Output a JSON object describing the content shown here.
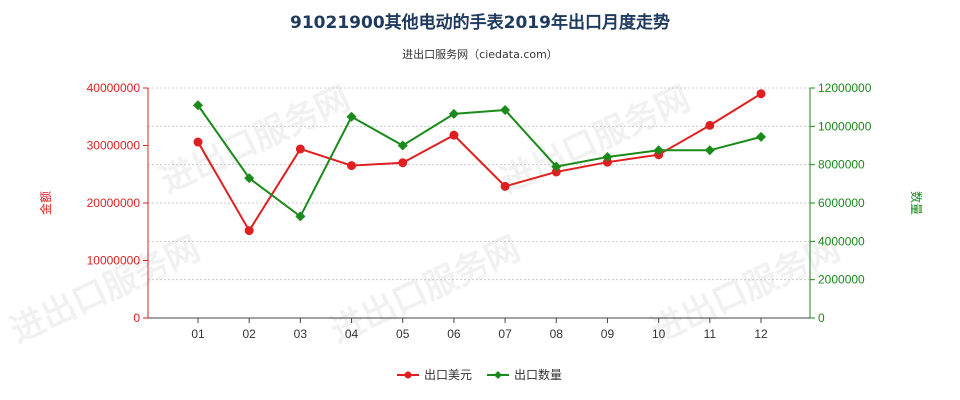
{
  "title": "91021900其他电动的手表2019年出口月度走势",
  "subtitle": "进出口服务网（ciedata.com）",
  "colors": {
    "left_axis": "#e02020",
    "right_axis": "#1a8a1a",
    "grid": "#cccccc"
  },
  "watermark": "进出口服务网",
  "chart_data": {
    "type": "line",
    "categories": [
      "01",
      "02",
      "03",
      "04",
      "05",
      "06",
      "07",
      "08",
      "09",
      "10",
      "11",
      "12"
    ],
    "left_axis": {
      "label": "金额",
      "ylim": [
        0,
        40000000
      ],
      "ticks": [
        "0",
        "10000000",
        "20000000",
        "30000000",
        "40000000"
      ]
    },
    "right_axis": {
      "label": "数量",
      "ylim": [
        0,
        12000000
      ],
      "ticks": [
        "0",
        "2000000",
        "4000000",
        "6000000",
        "8000000",
        "10000000",
        "12000000"
      ]
    },
    "series": [
      {
        "name": "出口美元",
        "axis": "left",
        "color": "#e02020",
        "marker": "circle",
        "values": [
          30600000,
          15200000,
          29400000,
          26500000,
          27000000,
          31800000,
          22900000,
          25400000,
          27100000,
          28400000,
          33500000,
          39000000
        ]
      },
      {
        "name": "出口数量",
        "axis": "right",
        "color": "#1a8a1a",
        "marker": "diamond",
        "values": [
          11100000,
          7300000,
          5300000,
          10500000,
          9000000,
          10650000,
          10850000,
          7900000,
          8400000,
          8750000,
          8750000,
          9450000
        ]
      }
    ],
    "grid": true,
    "legend": "bottom"
  }
}
